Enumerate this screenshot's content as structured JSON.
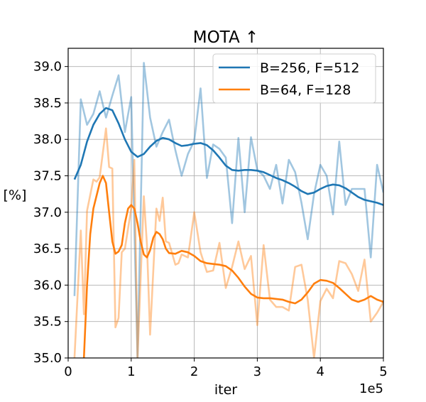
{
  "chart_data": {
    "type": "line",
    "title": "MOTA  ↑",
    "xlabel": "iter",
    "ylabel": "[%]",
    "x_multiplier_label": "1e5",
    "xlim": [
      0,
      5
    ],
    "ylim": [
      35.0,
      39.25
    ],
    "xticks": [
      0,
      1,
      2,
      3,
      4,
      5
    ],
    "xtick_labels": [
      "0",
      "1",
      "2",
      "3",
      "4",
      "5"
    ],
    "yticks": [
      35.0,
      35.5,
      36.0,
      36.5,
      37.0,
      37.5,
      38.0,
      38.5,
      39.0
    ],
    "ytick_labels": [
      "35.0",
      "35.5",
      "36.0",
      "36.5",
      "37.0",
      "37.5",
      "38.0",
      "38.5",
      "39.0"
    ],
    "grid": true,
    "legend_position": "top-right",
    "series": [
      {
        "name": "B=256, F=512",
        "color": "#1f77b4",
        "raw_x": [
          0.1,
          0.2,
          0.3,
          0.4,
          0.5,
          0.6,
          0.7,
          0.8,
          0.9,
          1.0,
          1.1,
          1.2,
          1.3,
          1.4,
          1.5,
          1.6,
          1.7,
          1.8,
          1.9,
          2.0,
          2.1,
          2.2,
          2.3,
          2.4,
          2.5,
          2.6,
          2.7,
          2.8,
          2.9,
          3.0,
          3.1,
          3.2,
          3.3,
          3.4,
          3.5,
          3.6,
          3.7,
          3.8,
          3.9,
          4.0,
          4.1,
          4.2,
          4.3,
          4.4,
          4.5,
          4.6,
          4.7,
          4.8,
          4.9,
          5.0
        ],
        "raw_y": [
          35.85,
          38.55,
          38.2,
          38.35,
          38.66,
          38.3,
          38.6,
          38.88,
          38.1,
          38.58,
          35.0,
          39.05,
          38.3,
          37.9,
          38.1,
          38.27,
          37.85,
          37.5,
          37.8,
          37.98,
          38.7,
          37.47,
          37.93,
          37.87,
          37.75,
          36.85,
          38.02,
          37.0,
          38.03,
          37.58,
          37.5,
          37.32,
          37.65,
          37.12,
          37.72,
          37.55,
          37.13,
          36.63,
          37.25,
          37.65,
          37.5,
          36.97,
          37.97,
          37.1,
          37.32,
          37.32,
          37.32,
          36.38,
          37.65,
          37.27
        ],
        "smooth_x": [
          0.1,
          0.2,
          0.3,
          0.4,
          0.5,
          0.6,
          0.7,
          0.8,
          0.9,
          1.0,
          1.1,
          1.2,
          1.3,
          1.4,
          1.5,
          1.6,
          1.7,
          1.8,
          1.9,
          2.0,
          2.1,
          2.2,
          2.3,
          2.4,
          2.5,
          2.6,
          2.7,
          2.8,
          2.9,
          3.0,
          3.1,
          3.2,
          3.3,
          3.4,
          3.5,
          3.6,
          3.7,
          3.8,
          3.9,
          4.0,
          4.1,
          4.2,
          4.3,
          4.4,
          4.5,
          4.6,
          4.7,
          4.8,
          4.9,
          5.0
        ],
        "smooth_y": [
          37.45,
          37.65,
          37.97,
          38.2,
          38.35,
          38.43,
          38.4,
          38.22,
          38.0,
          37.83,
          37.76,
          37.8,
          37.9,
          37.98,
          38.02,
          38.0,
          37.95,
          37.91,
          37.92,
          37.94,
          37.95,
          37.92,
          37.85,
          37.75,
          37.64,
          37.58,
          37.57,
          37.58,
          37.58,
          37.57,
          37.55,
          37.51,
          37.47,
          37.44,
          37.4,
          37.35,
          37.29,
          37.25,
          37.27,
          37.32,
          37.36,
          37.38,
          37.37,
          37.33,
          37.27,
          37.21,
          37.17,
          37.15,
          37.13,
          37.1
        ]
      },
      {
        "name": "B=64, F=128",
        "color": "#ff7f0e",
        "raw_x": [
          0.1,
          0.2,
          0.25,
          0.3,
          0.4,
          0.45,
          0.5,
          0.6,
          0.65,
          0.7,
          0.75,
          0.8,
          0.85,
          0.9,
          1.0,
          1.05,
          1.1,
          1.2,
          1.25,
          1.3,
          1.4,
          1.45,
          1.5,
          1.55,
          1.6,
          1.7,
          1.75,
          1.8,
          1.9,
          2.0,
          2.1,
          2.2,
          2.3,
          2.4,
          2.5,
          2.6,
          2.7,
          2.8,
          2.9,
          3.0,
          3.1,
          3.2,
          3.3,
          3.4,
          3.5,
          3.6,
          3.7,
          3.8,
          3.9,
          4.0,
          4.1,
          4.2,
          4.3,
          4.4,
          4.5,
          4.6,
          4.7,
          4.8,
          4.9,
          5.0
        ],
        "raw_y": [
          35.0,
          36.75,
          35.6,
          37.02,
          37.45,
          37.42,
          37.48,
          38.15,
          37.62,
          37.6,
          35.42,
          35.55,
          36.45,
          36.5,
          37.05,
          37.72,
          35.0,
          37.22,
          36.55,
          35.32,
          37.05,
          36.88,
          37.2,
          36.6,
          36.58,
          36.28,
          36.3,
          36.42,
          36.38,
          37.0,
          36.45,
          36.18,
          36.2,
          36.58,
          35.96,
          36.25,
          36.6,
          36.22,
          36.4,
          35.45,
          36.55,
          35.8,
          35.7,
          35.7,
          35.65,
          36.25,
          36.28,
          35.8,
          35.0,
          35.78,
          35.95,
          35.82,
          36.33,
          36.3,
          36.15,
          35.92,
          36.35,
          35.5,
          35.62,
          35.77
        ],
        "smooth_x": [
          0.25,
          0.3,
          0.35,
          0.4,
          0.5,
          0.55,
          0.6,
          0.65,
          0.7,
          0.75,
          0.8,
          0.85,
          0.9,
          0.95,
          1.0,
          1.05,
          1.1,
          1.15,
          1.2,
          1.25,
          1.3,
          1.35,
          1.4,
          1.45,
          1.5,
          1.55,
          1.6,
          1.7,
          1.8,
          1.9,
          2.0,
          2.1,
          2.2,
          2.3,
          2.4,
          2.5,
          2.6,
          2.7,
          2.8,
          2.9,
          3.0,
          3.1,
          3.2,
          3.3,
          3.4,
          3.5,
          3.6,
          3.7,
          3.8,
          3.9,
          4.0,
          4.1,
          4.2,
          4.3,
          4.4,
          4.5,
          4.6,
          4.7,
          4.8,
          4.9,
          5.0
        ],
        "smooth_y": [
          35.0,
          36.0,
          36.7,
          37.05,
          37.4,
          37.5,
          37.4,
          37.0,
          36.6,
          36.43,
          36.46,
          36.55,
          36.85,
          37.05,
          37.1,
          37.05,
          36.85,
          36.6,
          36.42,
          36.38,
          36.48,
          36.65,
          36.73,
          36.7,
          36.63,
          36.5,
          36.44,
          36.43,
          36.47,
          36.45,
          36.4,
          36.33,
          36.3,
          36.29,
          36.28,
          36.26,
          36.2,
          36.1,
          35.98,
          35.88,
          35.83,
          35.82,
          35.82,
          35.81,
          35.8,
          35.77,
          35.75,
          35.8,
          35.9,
          36.02,
          36.07,
          36.06,
          36.03,
          35.96,
          35.88,
          35.8,
          35.77,
          35.8,
          35.85,
          35.8,
          35.77
        ]
      }
    ]
  }
}
